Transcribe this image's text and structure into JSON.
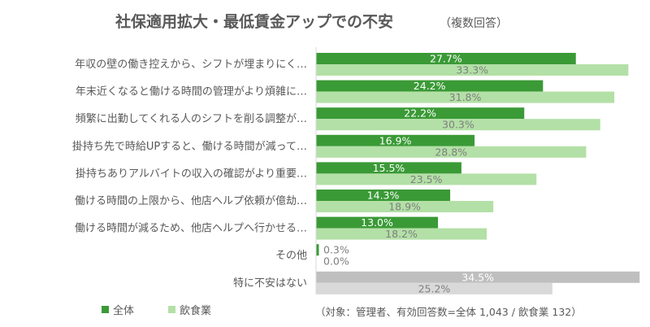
{
  "chart_data": {
    "type": "bar",
    "orientation": "horizontal",
    "title": "社保適用拡大・最低賃金アップでの不安",
    "subtitle": "（複数回答）",
    "categories": [
      "年収の壁の働き控えから、シフトが埋まりにく…",
      "年末近くなると働ける時間の管理がより煩雑に…",
      "頻繁に出勤してくれる人のシフトを削る調整が…",
      "掛持ち先で時給UPすると、働ける時間が減って…",
      "掛持ちありアルバイトの収入の確認がより重要…",
      "働ける時間の上限から、他店ヘルプ依頼が億劫…",
      "働ける時間が減るため、他店ヘルプへ行かせる…",
      "その他",
      "特に不安はない"
    ],
    "series": [
      {
        "name": "全体",
        "values": [
          27.7,
          24.2,
          22.2,
          16.9,
          15.5,
          14.3,
          13.0,
          0.3,
          34.5
        ],
        "labels": [
          "27.7%",
          "24.2%",
          "22.2%",
          "16.9%",
          "15.5%",
          "14.3%",
          "13.0%",
          "0.3%",
          "34.5%"
        ],
        "color": "#3a9a36",
        "highlight_color": "#bfbfbf"
      },
      {
        "name": "飲食業",
        "values": [
          33.3,
          31.8,
          30.3,
          28.8,
          23.5,
          18.9,
          18.2,
          0.0,
          25.2
        ],
        "labels": [
          "33.3%",
          "31.8%",
          "30.3%",
          "28.8%",
          "23.5%",
          "18.9%",
          "18.2%",
          "0.0%",
          "25.2%"
        ],
        "color": "#b3e0a6",
        "highlight_color": "#d9d9d9"
      }
    ],
    "xlim": [
      0,
      35
    ],
    "grid": false,
    "legend_position": "bottom-left",
    "note": "（対象：管理者、有効回答数=全体 1,043 / 飲食業 132）"
  }
}
